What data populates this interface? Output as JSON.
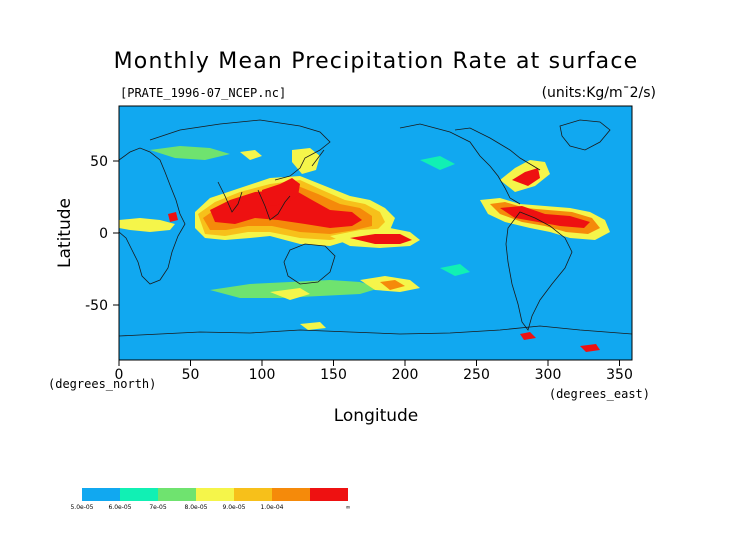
{
  "title": "Monthly Mean Precipitation Rate at surface",
  "file_label": "[PRATE_1996-07_NCEP.nc]",
  "units_label": "(units:Kg/m¯2/s)",
  "axes": {
    "y_title": "Latitude",
    "x_title": "Longitude",
    "y_ticks": [
      "50",
      "0",
      "-50"
    ],
    "x_ticks": [
      "0",
      "50",
      "100",
      "150",
      "200",
      "250",
      "300",
      "350"
    ],
    "y_unit": "(degrees_north)",
    "x_unit": "(degrees_east)"
  },
  "colors": {
    "ocean": "#11a8f0",
    "coast": "#1a1a1a",
    "levels": [
      "#11a8f0",
      "#11f0b4",
      "#6fe36f",
      "#f5f54a",
      "#f7c01a",
      "#f58a0a",
      "#ee1111"
    ]
  },
  "legend": {
    "labels": [
      "5.0e-05",
      "6.0e-05",
      "7e-05",
      "8.0e-05",
      "9.0e-05",
      "1.0e-04",
      "∞"
    ]
  }
}
